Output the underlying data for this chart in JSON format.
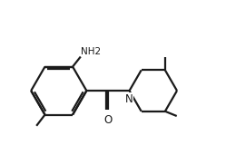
{
  "background_color": "#ffffff",
  "line_color": "#1a1a1a",
  "line_width": 1.6,
  "text_color": "#1a1a1a",
  "nh2_label": "NH2",
  "n_label": "N",
  "o_label": "O",
  "figsize": [
    2.49,
    1.71
  ],
  "dpi": 100
}
